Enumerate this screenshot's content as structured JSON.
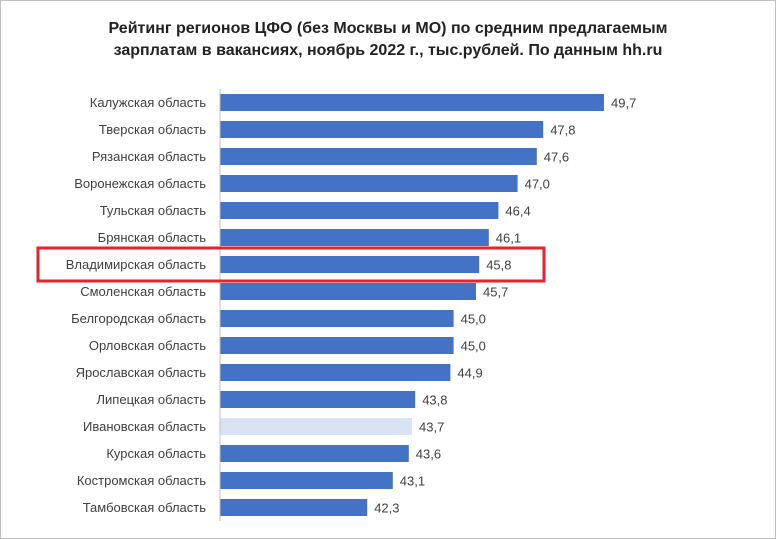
{
  "chart_data": {
    "type": "bar",
    "orientation": "horizontal",
    "title_line1": "Рейтинг регионов ЦФО (без Москвы и МО) по средним предлагаемым",
    "title_line2": "зарплатам в вакансиях, ноябрь 2022 г., тыс.рублей. По данным hh.ru",
    "categories": [
      "Калужская область",
      "Тверская область",
      "Рязанская область",
      "Воронежская область",
      "Тульская область",
      "Брянская область",
      "Владимирская область",
      "Смоленская область",
      "Белгородская область",
      "Орловская область",
      "Ярославская область",
      "Липецкая область",
      "Ивановская область",
      "Курская область",
      "Костромская область",
      "Тамбовская область"
    ],
    "values": [
      49.7,
      47.8,
      47.6,
      47.0,
      46.4,
      46.1,
      45.8,
      45.7,
      45.0,
      45.0,
      44.9,
      43.8,
      43.7,
      43.6,
      43.1,
      42.3
    ],
    "value_labels": [
      "49,7",
      "47,8",
      "47,6",
      "47,0",
      "46,4",
      "46,1",
      "45,8",
      "45,7",
      "45,0",
      "45,0",
      "44,9",
      "43,8",
      "43,7",
      "43,6",
      "43,1",
      "42,3"
    ],
    "bar_color": "#4472c4",
    "faded_bar_color": "#dae3f3",
    "faded_index": 12,
    "highlight_index": 6,
    "highlight_color": "#e8212b",
    "grid": false,
    "legend": "none"
  }
}
